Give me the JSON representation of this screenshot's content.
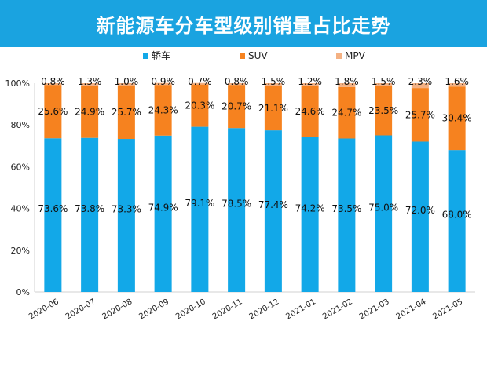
{
  "title": "新能源车分车型级别销量占比走势",
  "colors": {
    "header": "#1aa3e0",
    "sedan": "#12a8e8",
    "suv": "#f6821f",
    "mpv": "#f4b183"
  },
  "chart_data": {
    "type": "bar",
    "stacked": true,
    "percent": true,
    "categories": [
      "2020-06",
      "2020-07",
      "2020-08",
      "2020-09",
      "2020-10",
      "2020-11",
      "2020-12",
      "2021-01",
      "2021-02",
      "2021-03",
      "2021-04",
      "2021-05"
    ],
    "series": [
      {
        "name": "轿车",
        "values": [
          73.6,
          73.8,
          73.3,
          74.9,
          79.1,
          78.5,
          77.4,
          74.2,
          73.5,
          75.0,
          72.0,
          68.0
        ]
      },
      {
        "name": "SUV",
        "values": [
          25.6,
          24.9,
          25.7,
          24.3,
          20.3,
          20.7,
          21.1,
          24.6,
          24.7,
          23.5,
          25.7,
          30.4
        ]
      },
      {
        "name": "MPV",
        "values": [
          0.8,
          1.3,
          1.0,
          0.9,
          0.7,
          0.8,
          1.5,
          1.2,
          1.8,
          1.5,
          2.3,
          1.6
        ]
      }
    ],
    "labels": {
      "轿车": [
        "73.6%",
        "73.8%",
        "73.3%",
        "74.9%",
        "79.1%",
        "78.5%",
        "77.4%",
        "74.2%",
        "73.5%",
        "75.0%",
        "72.0%",
        "68.0%"
      ],
      "SUV": [
        "25.6%",
        "24.9%",
        "25.7%",
        "24.3%",
        "20.3%",
        "20.7%",
        "21.1%",
        "24.6%",
        "24.7%",
        "23.5%",
        "25.7%",
        "30.4%"
      ],
      "MPV": [
        "0.8%",
        "1.3%",
        "1.0%",
        "0.9%",
        "0.7%",
        "0.8%",
        "1.5%",
        "1.2%",
        "1.8%",
        "1.5%",
        "2.3%",
        "1.6%"
      ]
    },
    "y_ticks": [
      "0%",
      "20%",
      "40%",
      "60%",
      "80%",
      "100%"
    ],
    "ylim": [
      0,
      100
    ],
    "legend_position": "top-center",
    "grid": false
  }
}
